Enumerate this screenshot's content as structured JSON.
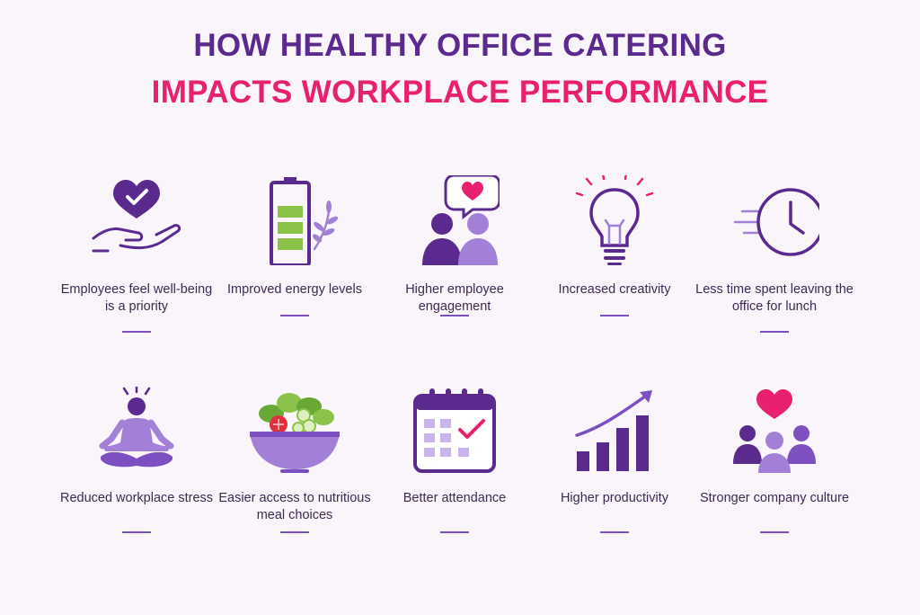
{
  "title": {
    "line1": "HOW HEALTHY OFFICE CATERING",
    "line2": "IMPACTS WORKPLACE PERFORMANCE"
  },
  "colors": {
    "background": "#faf5fb",
    "title_purple": "#5b2a8e",
    "title_pink": "#e8206f",
    "icon_purple": "#5b2a8e",
    "icon_light_purple": "#a380d8",
    "accent_pink": "#e8206f",
    "accent_green": "#8bc34a"
  },
  "items": [
    {
      "icon": "heart-in-hand-icon",
      "label": "Employees feel well-being is a priority"
    },
    {
      "icon": "battery-leaf-icon",
      "label": "Improved energy levels"
    },
    {
      "icon": "people-chat-heart-icon",
      "label": "Higher employee engagement"
    },
    {
      "icon": "lightbulb-icon",
      "label": "Increased creativity"
    },
    {
      "icon": "clock-icon",
      "label": "Less time spent leaving the office for lunch"
    },
    {
      "icon": "meditation-icon",
      "label": "Reduced workplace stress"
    },
    {
      "icon": "salad-bowl-icon",
      "label": "Easier access to nutritious meal choices"
    },
    {
      "icon": "calendar-check-icon",
      "label": "Better attendance"
    },
    {
      "icon": "growth-chart-icon",
      "label": "Higher productivity"
    },
    {
      "icon": "team-heart-icon",
      "label": "Stronger company culture"
    }
  ]
}
